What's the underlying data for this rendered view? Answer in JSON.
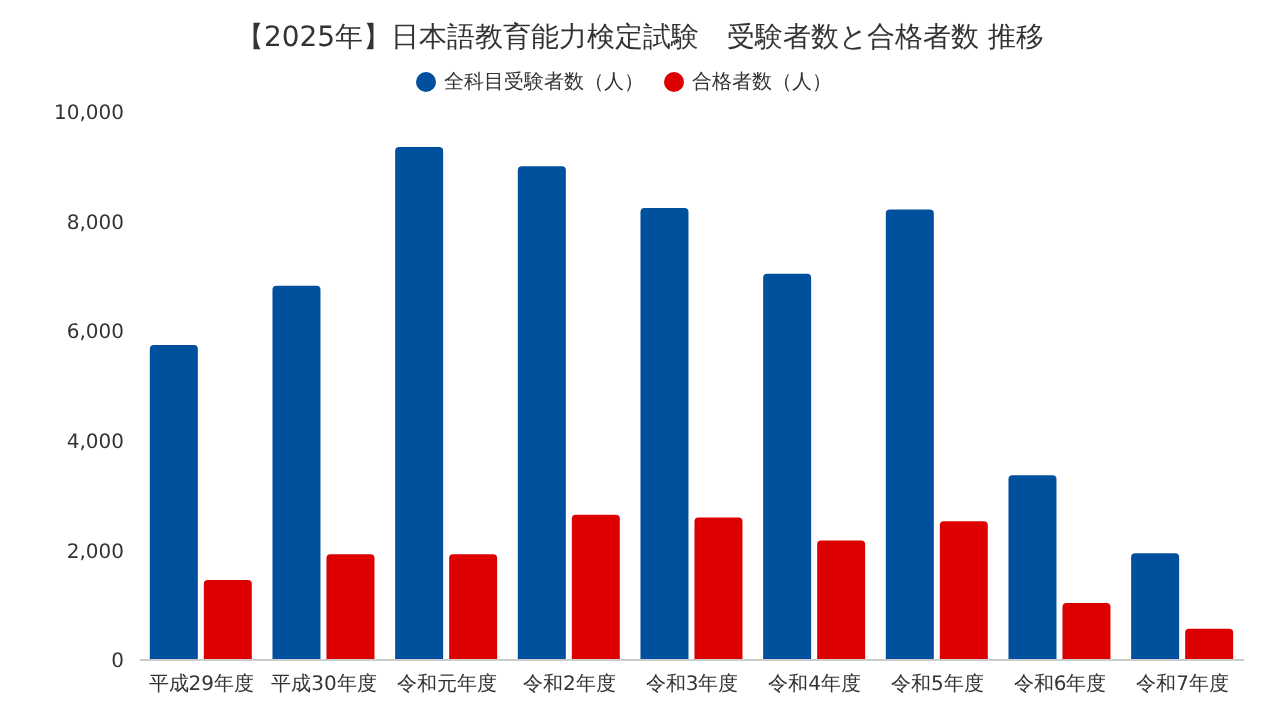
{
  "chart_data": {
    "type": "bar",
    "title": "【2025年】日本語教育能力検定試験　受験者数と合格者数 推移",
    "categories": [
      "平成29年度",
      "平成30年度",
      "令和元年度",
      "令和2年度",
      "令和3年度",
      "令和4年度",
      "令和5年度",
      "令和6年度",
      "令和7年度"
    ],
    "series": [
      {
        "name": "全科目受験者数（人）",
        "color": "#00509e",
        "values": [
          5750,
          6830,
          9360,
          9010,
          8250,
          7050,
          8220,
          3370,
          1950
        ]
      },
      {
        "name": "合格者数（人）",
        "color": "#dd0000",
        "values": [
          1460,
          1930,
          1930,
          2650,
          2600,
          2180,
          2530,
          1040,
          570
        ]
      }
    ],
    "ylim": [
      0,
      10000
    ],
    "yticks": [
      {
        "value": 0,
        "label": "0"
      },
      {
        "value": 2000,
        "label": "2,000"
      },
      {
        "value": 4000,
        "label": "4,000"
      },
      {
        "value": 6000,
        "label": "6,000"
      },
      {
        "value": 8000,
        "label": "8,000"
      },
      {
        "value": 10000,
        "label": "10,000"
      }
    ],
    "grid": false,
    "legend": "top"
  }
}
